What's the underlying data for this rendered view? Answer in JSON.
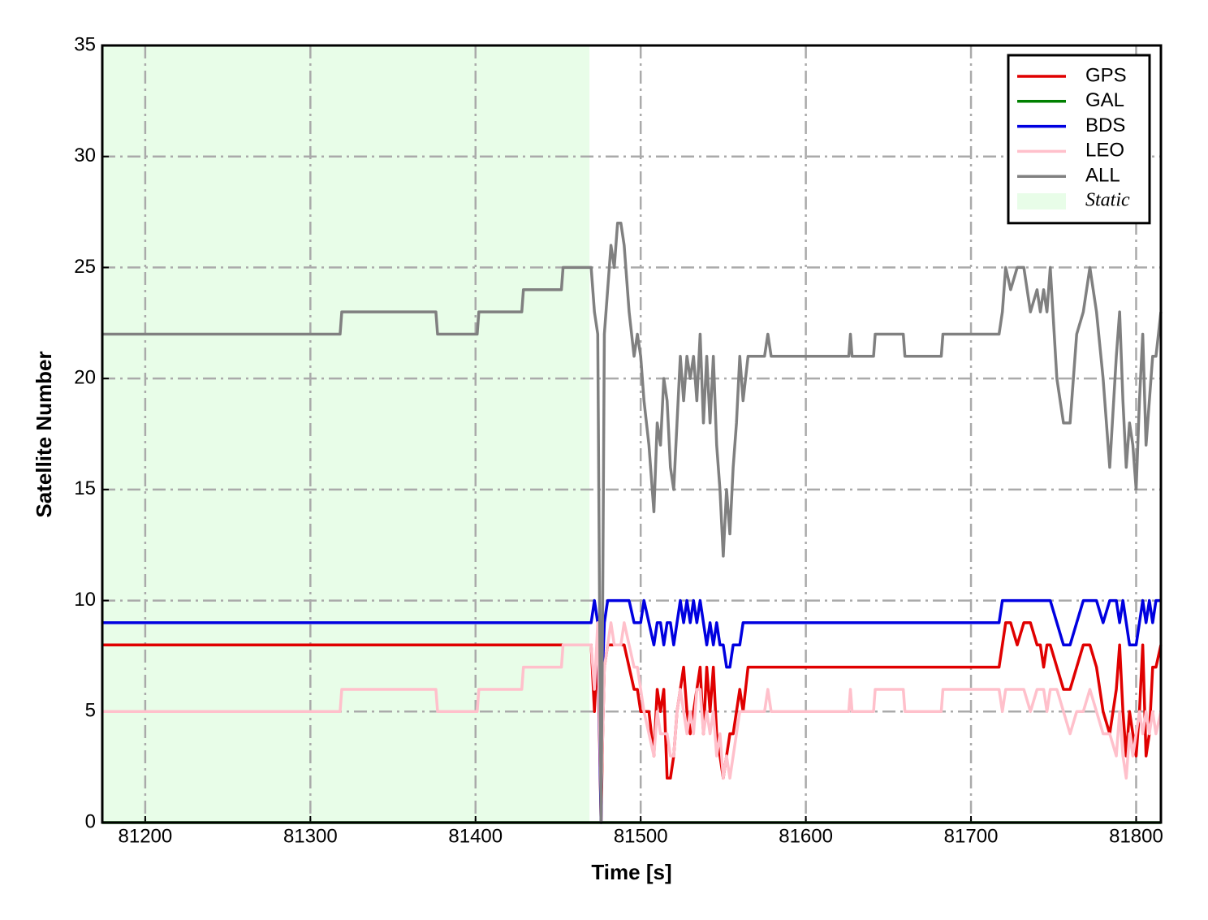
{
  "chart_data": {
    "type": "line",
    "xlabel": "Time [s]",
    "ylabel": "Satellite Number",
    "xlim": [
      81174,
      81815
    ],
    "ylim": [
      0,
      35
    ],
    "xticks": [
      81200,
      81300,
      81400,
      81500,
      81600,
      81700,
      81800
    ],
    "yticks": [
      0,
      5,
      10,
      15,
      20,
      25,
      30,
      35
    ],
    "grid": true,
    "legend_loc": "upper right",
    "shaded_regions": [
      {
        "label": "Static",
        "xlim": [
          81174,
          81469
        ],
        "color": "#e8fde8"
      }
    ],
    "x": [
      81174,
      81318,
      81319,
      81376,
      81377,
      81401,
      81402,
      81428,
      81429,
      81452,
      81453,
      81470,
      81472,
      81474,
      81476,
      81477,
      81478,
      81480,
      81482,
      81484,
      81486,
      81488,
      81490,
      81493,
      81496,
      81498,
      81500,
      81502,
      81505,
      81508,
      81510,
      81512,
      81514,
      81516,
      81518,
      81520,
      81522,
      81524,
      81526,
      81528,
      81530,
      81532,
      81534,
      81536,
      81538,
      81540,
      81542,
      81544,
      81546,
      81548,
      81550,
      81552,
      81554,
      81556,
      81558,
      81560,
      81562,
      81565,
      81575,
      81577,
      81579,
      81626,
      81627,
      81628,
      81641,
      81642,
      81659,
      81660,
      81682,
      81683,
      81717,
      81719,
      81721,
      81724,
      81728,
      81732,
      81736,
      81740,
      81742,
      81744,
      81746,
      81748,
      81752,
      81756,
      81760,
      81764,
      81768,
      81772,
      81776,
      81780,
      81784,
      81788,
      81790,
      81792,
      81794,
      81796,
      81798,
      81800,
      81802,
      81804,
      81806,
      81808,
      81810,
      81812,
      81815
    ],
    "series": [
      {
        "name": "GPS",
        "color": "#e00000",
        "values": [
          8,
          8,
          8,
          8,
          8,
          8,
          8,
          8,
          8,
          8,
          8,
          8,
          5,
          8,
          0,
          4,
          7,
          8,
          8,
          8,
          8,
          8,
          8,
          7,
          6,
          6,
          5,
          5,
          5,
          3,
          6,
          5,
          6,
          2,
          2,
          3,
          5,
          6,
          7,
          5,
          4,
          5,
          6,
          7,
          4,
          7,
          5,
          7,
          4,
          3,
          2,
          3,
          4,
          4,
          5,
          6,
          5,
          7,
          7,
          7,
          7,
          7,
          7,
          7,
          7,
          7,
          7,
          7,
          7,
          7,
          7,
          8,
          9,
          9,
          8,
          9,
          9,
          8,
          8,
          7,
          8,
          8,
          7,
          6,
          6,
          7,
          8,
          8,
          7,
          5,
          4,
          6,
          8,
          5,
          3,
          5,
          4,
          3,
          5,
          8,
          3,
          4,
          7,
          7,
          8
        ]
      },
      {
        "name": "GAL",
        "color": "#008000",
        "values": [
          0,
          0,
          0,
          0,
          0,
          0,
          0,
          0,
          0,
          0,
          0,
          0,
          0,
          0,
          0,
          0,
          0,
          0,
          0,
          0,
          0,
          0,
          0,
          0,
          0,
          0,
          0,
          0,
          0,
          0,
          0,
          0,
          0,
          0,
          0,
          0,
          0,
          0,
          0,
          0,
          0,
          0,
          0,
          0,
          0,
          0,
          0,
          0,
          0,
          0,
          0,
          0,
          0,
          0,
          0,
          0,
          0,
          0,
          0,
          0,
          0,
          0,
          0,
          0,
          0,
          0,
          0,
          0,
          0,
          0,
          0,
          0,
          0,
          0,
          0,
          0,
          0,
          0,
          0,
          0,
          0,
          0,
          0,
          0,
          0,
          0,
          0,
          0,
          0,
          0,
          0,
          0,
          0,
          0,
          0,
          0,
          0,
          0,
          0,
          0,
          0,
          0,
          0,
          0,
          0
        ]
      },
      {
        "name": "BDS",
        "color": "#0000e0",
        "values": [
          9,
          9,
          9,
          9,
          9,
          9,
          9,
          9,
          9,
          9,
          9,
          9,
          10,
          9,
          0,
          7,
          9,
          10,
          10,
          10,
          10,
          10,
          10,
          10,
          9,
          9,
          9,
          10,
          9,
          8,
          9,
          9,
          8,
          9,
          9,
          8,
          9,
          10,
          9,
          10,
          9,
          10,
          9,
          10,
          9,
          8,
          9,
          8,
          9,
          8,
          8,
          7,
          7,
          8,
          8,
          8,
          9,
          9,
          9,
          9,
          9,
          9,
          9,
          9,
          9,
          9,
          9,
          9,
          9,
          9,
          9,
          10,
          10,
          10,
          10,
          10,
          10,
          10,
          10,
          10,
          10,
          10,
          9,
          8,
          8,
          9,
          10,
          10,
          10,
          9,
          10,
          10,
          9,
          10,
          9,
          8,
          8,
          8,
          9,
          10,
          9,
          10,
          9,
          10,
          10
        ]
      },
      {
        "name": "LEO",
        "color": "#ffc0cb",
        "values": [
          5,
          5,
          6,
          6,
          5,
          5,
          6,
          6,
          7,
          7,
          8,
          8,
          6,
          9,
          1,
          4,
          7,
          8,
          9,
          8,
          8,
          8,
          9,
          8,
          7,
          7,
          6,
          5,
          4,
          3,
          5,
          4,
          4,
          4,
          3,
          3,
          5,
          6,
          5,
          4,
          5,
          4,
          6,
          6,
          4,
          5,
          4,
          5,
          3,
          4,
          2,
          3,
          2,
          3,
          4,
          5,
          5,
          5,
          5,
          6,
          5,
          5,
          6,
          5,
          5,
          6,
          6,
          5,
          5,
          6,
          6,
          5,
          6,
          6,
          6,
          6,
          5,
          6,
          6,
          6,
          5,
          6,
          6,
          5,
          4,
          5,
          5,
          6,
          5,
          4,
          4,
          3,
          5,
          3,
          2,
          4,
          3,
          4,
          5,
          4,
          5,
          4,
          5,
          4,
          5
        ]
      },
      {
        "name": "ALL",
        "color": "#808080",
        "values": [
          22,
          22,
          23,
          23,
          22,
          22,
          23,
          23,
          24,
          24,
          25,
          25,
          23,
          22,
          0,
          10,
          22,
          24,
          26,
          25,
          27,
          27,
          26,
          23,
          21,
          22,
          21,
          19,
          17,
          14,
          18,
          17,
          20,
          19,
          16,
          15,
          18,
          21,
          19,
          21,
          20,
          21,
          19,
          22,
          18,
          21,
          18,
          21,
          17,
          15,
          12,
          15,
          13,
          16,
          18,
          21,
          19,
          21,
          21,
          22,
          21,
          21,
          22,
          21,
          21,
          22,
          22,
          21,
          21,
          22,
          22,
          23,
          25,
          24,
          25,
          25,
          23,
          24,
          23,
          24,
          23,
          25,
          20,
          18,
          18,
          22,
          23,
          25,
          23,
          20,
          16,
          21,
          23,
          19,
          16,
          18,
          17,
          15,
          19,
          22,
          17,
          19,
          21,
          21,
          23
        ]
      }
    ]
  }
}
